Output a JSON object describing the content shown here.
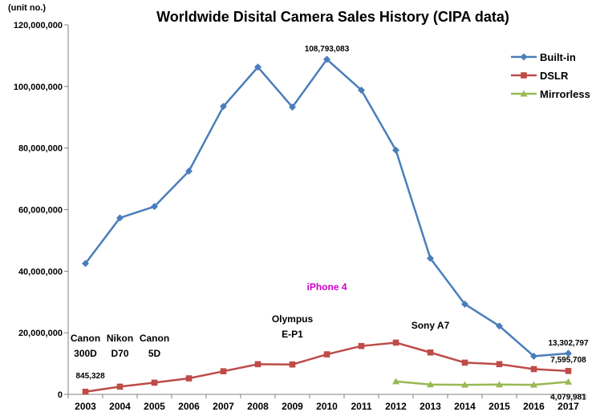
{
  "chart_data": {
    "type": "line",
    "title": "Worldwide Disital Camera Sales History (CIPA data)",
    "unit_label": "(unit no.)",
    "ylim": [
      0,
      120000000
    ],
    "y_ticks": [
      0,
      20000000,
      40000000,
      60000000,
      80000000,
      100000000,
      120000000
    ],
    "y_tick_labels": [
      "0",
      "20,000,000",
      "40,000,000",
      "60,000,000",
      "80,000,000",
      "100,000,000",
      "120,000,000"
    ],
    "categories": [
      "2003",
      "2004",
      "2005",
      "2006",
      "2007",
      "2008",
      "2009",
      "2010",
      "2011",
      "2012",
      "2013",
      "2014",
      "2015",
      "2016",
      "2017"
    ],
    "grid": false,
    "legend_position": "top-right",
    "series": [
      {
        "name": "Built-in",
        "color": "#4a7ebb",
        "marker": "diamond",
        "values": [
          42500000,
          57300000,
          61000000,
          72500000,
          93500000,
          106300000,
          93300000,
          108793083,
          98800000,
          79300000,
          44200000,
          29300000,
          22200000,
          12400000,
          13302797
        ]
      },
      {
        "name": "DSLR",
        "color": "#be4b48",
        "marker": "square",
        "values": [
          845328,
          2500000,
          3800000,
          5200000,
          7500000,
          9800000,
          9700000,
          13000000,
          15700000,
          16800000,
          13600000,
          10300000,
          9800000,
          8200000,
          7595708
        ]
      },
      {
        "name": "Mirrorless",
        "color": "#98b954",
        "marker": "triangle",
        "values": [
          null,
          null,
          null,
          null,
          null,
          null,
          null,
          null,
          null,
          4200000,
          3200000,
          3100000,
          3200000,
          3100000,
          4079981
        ]
      }
    ],
    "data_labels": [
      {
        "text": "108,793,083",
        "series": "Built-in",
        "category": "2010"
      },
      {
        "text": "845,328",
        "series": "DSLR",
        "category": "2003"
      },
      {
        "text": "13,302,797",
        "series": "Built-in",
        "category": "2017"
      },
      {
        "text": "7,595,708",
        "series": "DSLR",
        "category": "2017"
      },
      {
        "text": "4,079,981",
        "series": "Mirrorless",
        "category": "2017"
      }
    ],
    "annotations": [
      {
        "lines": [
          "Canon",
          "300D"
        ],
        "category": "2003",
        "color": "#000000"
      },
      {
        "lines": [
          "Nikon",
          "D70"
        ],
        "category": "2004",
        "color": "#000000"
      },
      {
        "lines": [
          "Canon",
          "5D"
        ],
        "category": "2005",
        "color": "#000000"
      },
      {
        "lines": [
          "Olympus",
          "E-P1"
        ],
        "category": "2009",
        "color": "#000000"
      },
      {
        "lines": [
          "iPhone 4"
        ],
        "category": "2010",
        "color": "#cc00cc"
      },
      {
        "lines": [
          "Sony A7"
        ],
        "category": "2013",
        "color": "#000000"
      }
    ]
  }
}
